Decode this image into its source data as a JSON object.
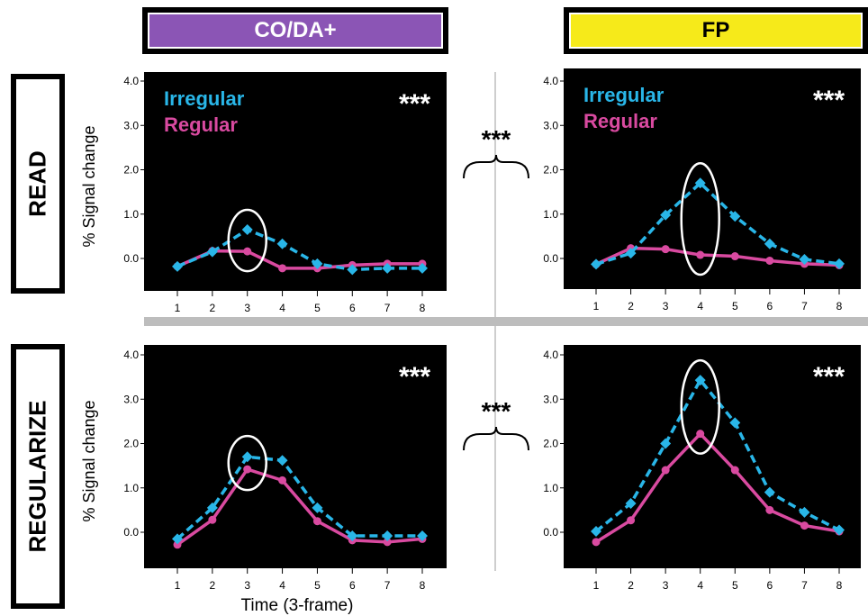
{
  "columns": [
    {
      "label": "CO/DA+",
      "color": "#8b55b5"
    },
    {
      "label": "FP",
      "color": "#f6ea1a"
    }
  ],
  "rows": [
    {
      "label": "READ"
    },
    {
      "label": "REGULARIZE"
    }
  ],
  "colors": {
    "irregular": "#29b6e8",
    "regular": "#d94aa0",
    "panel_bg": "#000000",
    "divider": "#bdbdbd"
  },
  "ylabel": "% Signal change",
  "xlabel": "Time (3-frame)",
  "between_significance": "***",
  "chart_data": [
    {
      "type": "line",
      "row": "READ",
      "column": "CO/DA+",
      "x": [
        1,
        2,
        3,
        4,
        5,
        6,
        7,
        8
      ],
      "ylim": [
        -0.6,
        4.2
      ],
      "yticks": [
        "0.0",
        "1.0",
        "2.0",
        "3.0",
        "4.0"
      ],
      "xticks": [
        "1",
        "2",
        "3",
        "4",
        "5",
        "6",
        "7",
        "8"
      ],
      "legend": [
        "Irregular",
        "Regular"
      ],
      "significance": "***",
      "highlight_x": 3,
      "series": [
        {
          "name": "Irregular",
          "style": "dashed-diamond",
          "values": [
            -0.18,
            0.15,
            0.65,
            0.33,
            -0.12,
            -0.25,
            -0.22,
            -0.22
          ]
        },
        {
          "name": "Regular",
          "style": "solid-circle",
          "values": [
            -0.18,
            0.17,
            0.16,
            -0.22,
            -0.22,
            -0.15,
            -0.12,
            -0.12
          ]
        }
      ]
    },
    {
      "type": "line",
      "row": "READ",
      "column": "FP",
      "x": [
        1,
        2,
        3,
        4,
        5,
        6,
        7,
        8
      ],
      "ylim": [
        -0.6,
        4.2
      ],
      "yticks": [
        "0.0",
        "1.0",
        "2.0",
        "3.0",
        "4.0"
      ],
      "xticks": [
        "1",
        "2",
        "3",
        "4",
        "5",
        "6",
        "7",
        "8"
      ],
      "legend": [
        "Irregular",
        "Regular"
      ],
      "significance": "***",
      "highlight_x": 4,
      "series": [
        {
          "name": "Irregular",
          "style": "dashed-diamond",
          "values": [
            -0.13,
            0.12,
            0.98,
            1.7,
            0.95,
            0.33,
            -0.02,
            -0.12
          ]
        },
        {
          "name": "Regular",
          "style": "solid-circle",
          "values": [
            -0.13,
            0.23,
            0.21,
            0.08,
            0.05,
            -0.05,
            -0.12,
            -0.15
          ]
        }
      ]
    },
    {
      "type": "line",
      "row": "REGULARIZE",
      "column": "CO/DA+",
      "x": [
        1,
        2,
        3,
        4,
        5,
        6,
        7,
        8
      ],
      "ylim": [
        -0.6,
        4.2
      ],
      "yticks": [
        "0.0",
        "1.0",
        "2.0",
        "3.0",
        "4.0"
      ],
      "xticks": [
        "1",
        "2",
        "3",
        "4",
        "5",
        "6",
        "7",
        "8"
      ],
      "significance": "***",
      "highlight_x": 3,
      "series": [
        {
          "name": "Irregular",
          "style": "dashed-diamond",
          "values": [
            -0.15,
            0.55,
            1.7,
            1.62,
            0.55,
            -0.08,
            -0.08,
            -0.08
          ]
        },
        {
          "name": "Regular",
          "style": "solid-circle",
          "values": [
            -0.28,
            0.28,
            1.42,
            1.17,
            0.25,
            -0.18,
            -0.22,
            -0.15
          ]
        }
      ]
    },
    {
      "type": "line",
      "row": "REGULARIZE",
      "column": "FP",
      "x": [
        1,
        2,
        3,
        4,
        5,
        6,
        7,
        8
      ],
      "ylim": [
        -0.6,
        4.2
      ],
      "yticks": [
        "0.0",
        "1.0",
        "2.0",
        "3.0",
        "4.0"
      ],
      "xticks": [
        "1",
        "2",
        "3",
        "4",
        "5",
        "6",
        "7",
        "8"
      ],
      "significance": "***",
      "highlight_x": 4,
      "series": [
        {
          "name": "Irregular",
          "style": "dashed-diamond",
          "values": [
            0.02,
            0.65,
            2.0,
            3.43,
            2.47,
            0.9,
            0.45,
            0.05
          ]
        },
        {
          "name": "Regular",
          "style": "solid-circle",
          "values": [
            -0.22,
            0.27,
            1.4,
            2.22,
            1.4,
            0.5,
            0.15,
            0.02
          ]
        }
      ]
    }
  ]
}
